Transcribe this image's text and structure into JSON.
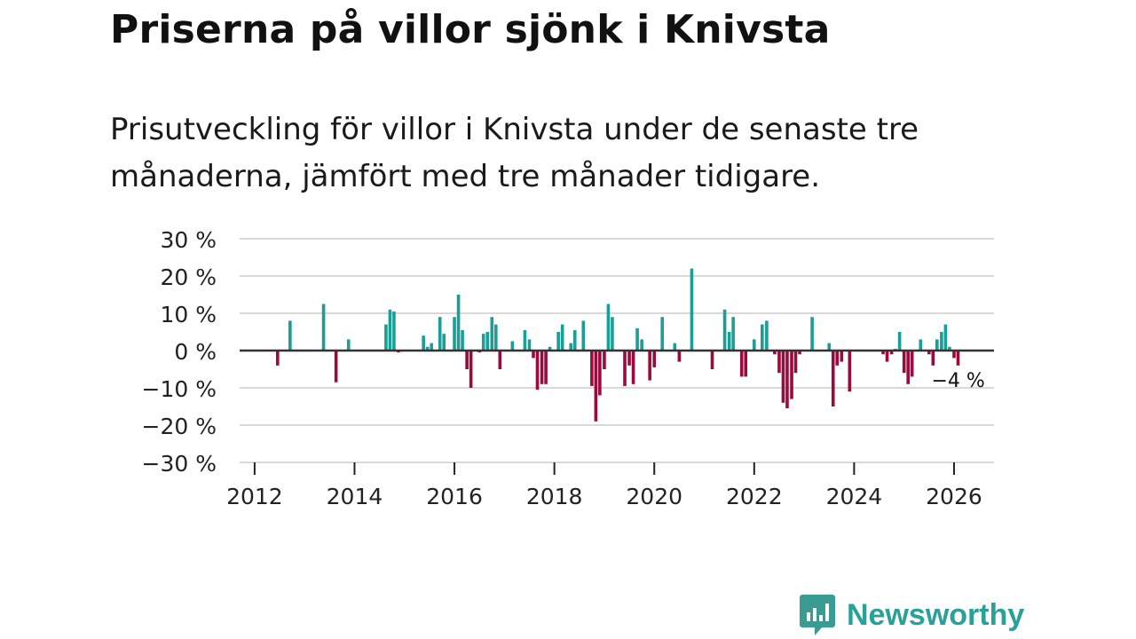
{
  "header": {
    "title": "Priserna på villor sjönk i Knivsta",
    "subtitle": "Prisutveckling för villor i Knivsta under de senaste tre månaderna, jämfört med tre månader tidigare."
  },
  "brand": {
    "name": "Newsworthy"
  },
  "colors": {
    "positive": "#1a9e96",
    "negative": "#9b0a3c",
    "grid": "#d9d9d9",
    "axis": "#333333",
    "brand": "#2aa198"
  },
  "chart_data": {
    "type": "bar",
    "title": "Priserna på villor sjönk i Knivsta",
    "xlabel": "",
    "ylabel": "",
    "ylim": [
      -30,
      30
    ],
    "xlim": [
      2011.7,
      2026.8
    ],
    "y_ticks": [
      30,
      20,
      10,
      0,
      -10,
      -20,
      -30
    ],
    "y_tick_labels": [
      "30 %",
      "20 %",
      "10 %",
      "0 %",
      "−10 %",
      "−20 %",
      "−30 %"
    ],
    "x_ticks": [
      2012,
      2014,
      2016,
      2018,
      2020,
      2022,
      2024,
      2026
    ],
    "x_tick_labels": [
      "2012",
      "2014",
      "2016",
      "2018",
      "2020",
      "2022",
      "2024",
      "2026"
    ],
    "last_value_label": "−4 %",
    "series": [
      {
        "name": "Prisutveckling",
        "points": [
          {
            "x": 2012.46,
            "y": -4
          },
          {
            "x": 2012.71,
            "y": 8
          },
          {
            "x": 2013.38,
            "y": 12.5
          },
          {
            "x": 2013.63,
            "y": -8.5
          },
          {
            "x": 2013.88,
            "y": 3
          },
          {
            "x": 2014.63,
            "y": 7
          },
          {
            "x": 2014.71,
            "y": 11
          },
          {
            "x": 2014.79,
            "y": 10.5
          },
          {
            "x": 2014.88,
            "y": -0.5
          },
          {
            "x": 2015.38,
            "y": 4
          },
          {
            "x": 2015.46,
            "y": 1
          },
          {
            "x": 2015.54,
            "y": 2
          },
          {
            "x": 2015.71,
            "y": 9
          },
          {
            "x": 2015.79,
            "y": 4.5
          },
          {
            "x": 2016.0,
            "y": 9
          },
          {
            "x": 2016.08,
            "y": 15
          },
          {
            "x": 2016.16,
            "y": 5.5
          },
          {
            "x": 2016.25,
            "y": -5
          },
          {
            "x": 2016.33,
            "y": -10
          },
          {
            "x": 2016.5,
            "y": -0.5
          },
          {
            "x": 2016.58,
            "y": 4.5
          },
          {
            "x": 2016.66,
            "y": 5
          },
          {
            "x": 2016.75,
            "y": 9
          },
          {
            "x": 2016.83,
            "y": 7
          },
          {
            "x": 2016.91,
            "y": -5
          },
          {
            "x": 2017.16,
            "y": 2.5
          },
          {
            "x": 2017.41,
            "y": 5.5
          },
          {
            "x": 2017.5,
            "y": 3
          },
          {
            "x": 2017.58,
            "y": -2
          },
          {
            "x": 2017.66,
            "y": -10.5
          },
          {
            "x": 2017.75,
            "y": -9
          },
          {
            "x": 2017.83,
            "y": -9
          },
          {
            "x": 2017.91,
            "y": 1
          },
          {
            "x": 2018.08,
            "y": 5
          },
          {
            "x": 2018.16,
            "y": 7
          },
          {
            "x": 2018.33,
            "y": 2
          },
          {
            "x": 2018.41,
            "y": 5.5
          },
          {
            "x": 2018.58,
            "y": 8
          },
          {
            "x": 2018.75,
            "y": -9.5
          },
          {
            "x": 2018.83,
            "y": -19
          },
          {
            "x": 2018.91,
            "y": -12
          },
          {
            "x": 2019.0,
            "y": -5
          },
          {
            "x": 2019.08,
            "y": 12.5
          },
          {
            "x": 2019.16,
            "y": 9
          },
          {
            "x": 2019.41,
            "y": -9.5
          },
          {
            "x": 2019.5,
            "y": -4
          },
          {
            "x": 2019.58,
            "y": -9
          },
          {
            "x": 2019.66,
            "y": 6
          },
          {
            "x": 2019.75,
            "y": 3
          },
          {
            "x": 2019.91,
            "y": -8
          },
          {
            "x": 2020.0,
            "y": -4.5
          },
          {
            "x": 2020.16,
            "y": 9
          },
          {
            "x": 2020.41,
            "y": 2
          },
          {
            "x": 2020.5,
            "y": -3
          },
          {
            "x": 2020.75,
            "y": 22
          },
          {
            "x": 2021.16,
            "y": -5
          },
          {
            "x": 2021.41,
            "y": 11
          },
          {
            "x": 2021.5,
            "y": 5
          },
          {
            "x": 2021.58,
            "y": 9
          },
          {
            "x": 2021.75,
            "y": -7
          },
          {
            "x": 2021.83,
            "y": -7
          },
          {
            "x": 2022.0,
            "y": 3
          },
          {
            "x": 2022.16,
            "y": 7
          },
          {
            "x": 2022.25,
            "y": 8
          },
          {
            "x": 2022.41,
            "y": -1
          },
          {
            "x": 2022.5,
            "y": -6
          },
          {
            "x": 2022.58,
            "y": -14
          },
          {
            "x": 2022.66,
            "y": -15.5
          },
          {
            "x": 2022.75,
            "y": -13
          },
          {
            "x": 2022.83,
            "y": -6
          },
          {
            "x": 2022.91,
            "y": -1
          },
          {
            "x": 2023.16,
            "y": 9
          },
          {
            "x": 2023.5,
            "y": 2
          },
          {
            "x": 2023.58,
            "y": -15
          },
          {
            "x": 2023.66,
            "y": -4
          },
          {
            "x": 2023.75,
            "y": -3
          },
          {
            "x": 2023.91,
            "y": -11
          },
          {
            "x": 2024.58,
            "y": -1
          },
          {
            "x": 2024.66,
            "y": -3
          },
          {
            "x": 2024.75,
            "y": -1
          },
          {
            "x": 2024.83,
            "y": 0.5
          },
          {
            "x": 2024.91,
            "y": 5
          },
          {
            "x": 2025.0,
            "y": -6
          },
          {
            "x": 2025.08,
            "y": -9
          },
          {
            "x": 2025.16,
            "y": -7
          },
          {
            "x": 2025.33,
            "y": 3
          },
          {
            "x": 2025.5,
            "y": -1
          },
          {
            "x": 2025.58,
            "y": -4
          },
          {
            "x": 2025.66,
            "y": 3
          },
          {
            "x": 2025.75,
            "y": 5
          },
          {
            "x": 2025.83,
            "y": 7
          },
          {
            "x": 2025.91,
            "y": 1
          },
          {
            "x": 2026.0,
            "y": -2
          },
          {
            "x": 2026.08,
            "y": -4
          }
        ]
      }
    ]
  }
}
